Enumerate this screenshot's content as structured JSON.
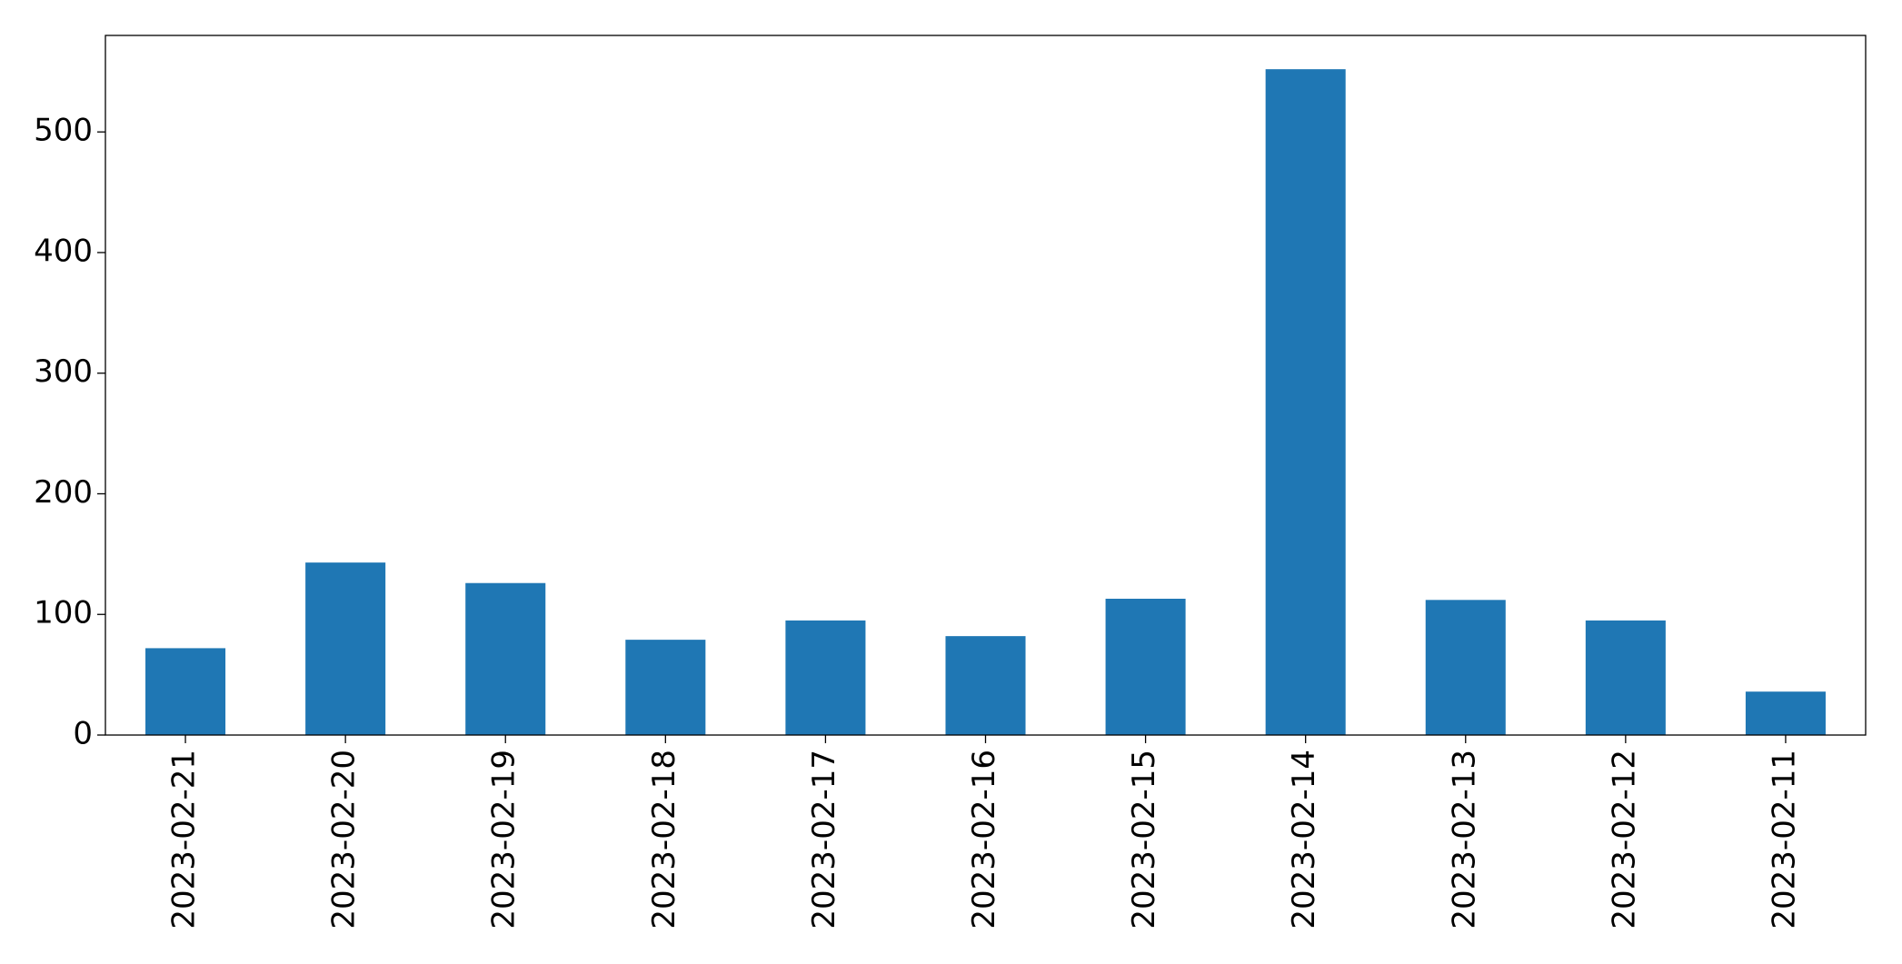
{
  "chart_data": {
    "type": "bar",
    "categories": [
      "2023-02-21",
      "2023-02-20",
      "2023-02-19",
      "2023-02-18",
      "2023-02-17",
      "2023-02-16",
      "2023-02-15",
      "2023-02-14",
      "2023-02-13",
      "2023-02-12",
      "2023-02-11"
    ],
    "values": [
      72,
      143,
      126,
      79,
      95,
      82,
      113,
      552,
      112,
      95,
      36
    ],
    "color": "#1f77b4",
    "ylim": [
      0,
      580
    ],
    "yticks": [
      0,
      100,
      200,
      300,
      400,
      500
    ],
    "grid": false
  }
}
